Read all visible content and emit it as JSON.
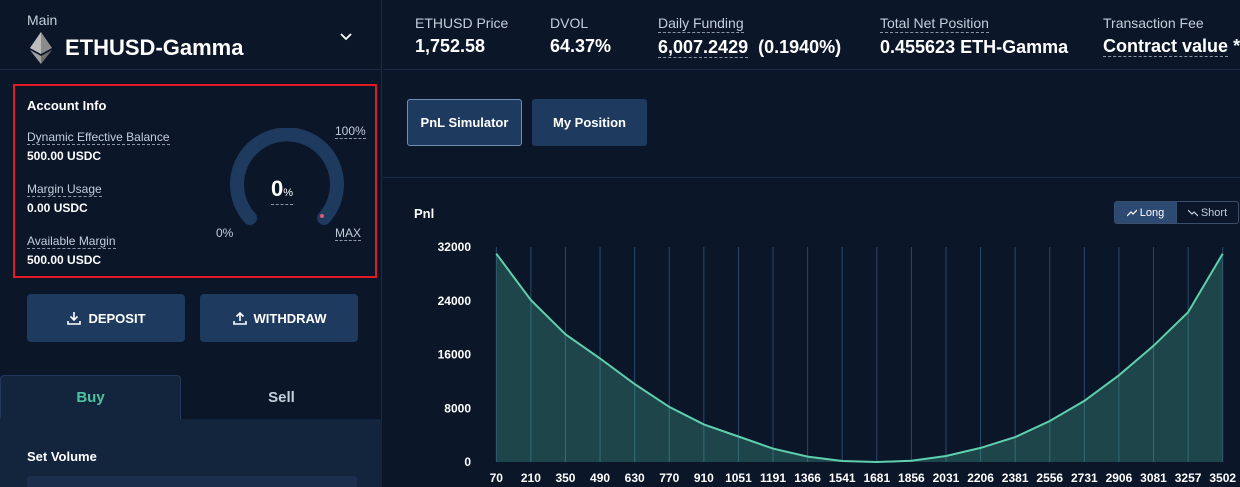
{
  "market": {
    "group": "Main",
    "name": "ETHUSD-Gamma"
  },
  "account": {
    "title": "Account Info",
    "balance_label": "Dynamic Effective Balance",
    "balance_value": "500.00 USDC",
    "margin_label": "Margin Usage",
    "margin_value": "0.00 USDC",
    "available_label": "Available Margin",
    "available_value": "500.00 USDC",
    "gauge": {
      "value": "0",
      "unit": "%",
      "min_label": "0%",
      "max_label": "MAX",
      "max_pct_label": "100%",
      "fill": 0
    }
  },
  "actions": {
    "deposit": "DEPOSIT",
    "withdraw": "WITHDRAW"
  },
  "trade": {
    "buy": "Buy",
    "sell": "Sell",
    "set_volume": "Set Volume"
  },
  "stats": [
    {
      "label": "ETHUSD Price",
      "value": "1,752.58",
      "dashed": false
    },
    {
      "label": "DVOL",
      "value": "64.37%",
      "dashed": false
    },
    {
      "label": "Daily Funding",
      "value": "6,007.2429",
      "extra": "(0.1940%)",
      "dashed": true
    },
    {
      "label": "Total Net Position",
      "value": "0.455623 ETH-Gamma",
      "dashed": true
    },
    {
      "label": "Transaction Fee",
      "value": "Contract value",
      "extra": "* (",
      "dashed": false
    }
  ],
  "tabs": {
    "pnl_simulator": "PnL Simulator",
    "my_position": "My Position"
  },
  "chart": {
    "toggle_long": "Long",
    "toggle_short": "Short"
  },
  "colors": {
    "accent": "#4fc3a1",
    "panel": "#13243d",
    "button": "#1f3a5f",
    "background": "#0b1629",
    "highlight_border": "#e01b24"
  },
  "chart_data": {
    "type": "area",
    "ylabel": "Pnl",
    "categories": [
      "70",
      "210",
      "350",
      "490",
      "630",
      "770",
      "910",
      "1051",
      "1191",
      "1366",
      "1541",
      "1681",
      "1856",
      "2031",
      "2206",
      "2381",
      "2556",
      "2731",
      "2906",
      "3081",
      "3257",
      "3502"
    ],
    "x": [
      70,
      210,
      350,
      490,
      630,
      770,
      910,
      1051,
      1191,
      1366,
      1541,
      1681,
      1856,
      2031,
      2206,
      2381,
      2556,
      2731,
      2906,
      3081,
      3257,
      3502
    ],
    "y_ticks": [
      "0",
      "8000",
      "16000",
      "24000",
      "32000"
    ],
    "ylim": [
      0,
      32000
    ],
    "xlim": [
      0,
      3540
    ],
    "series": [
      {
        "values": [
          31000,
          24100,
          19000,
          15400,
          11600,
          8200,
          5600,
          3800,
          2000,
          800,
          150,
          0,
          180,
          900,
          2100,
          3700,
          6100,
          9100,
          12900,
          17300,
          22300,
          31000
        ]
      }
    ],
    "grid": "vertical"
  }
}
